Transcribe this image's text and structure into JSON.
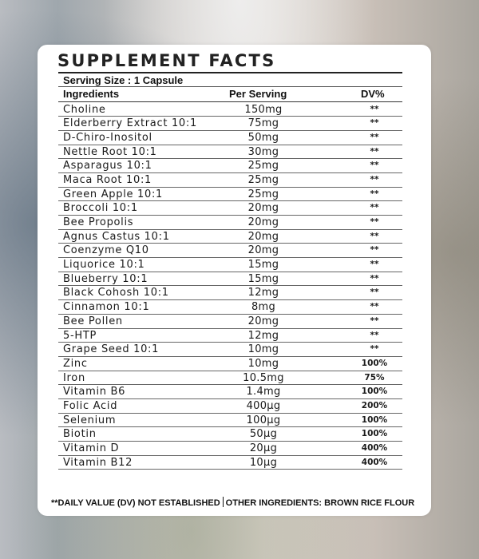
{
  "label": {
    "title": "SUPPLEMENT FACTS",
    "serving_size": "Serving Size : 1 Capsule",
    "headers": {
      "ingredients": "Ingredients",
      "per_serving": "Per Serving",
      "dv": "DV%"
    },
    "rows": [
      {
        "name": "Choline",
        "amount": "150mg",
        "dv": "**"
      },
      {
        "name": "Elderberry Extract 10:1",
        "amount": "75mg",
        "dv": "**"
      },
      {
        "name": "D-Chiro-Inositol",
        "amount": "50mg",
        "dv": "**"
      },
      {
        "name": "Nettle Root 10:1",
        "amount": "30mg",
        "dv": "**"
      },
      {
        "name": "Asparagus 10:1",
        "amount": "25mg",
        "dv": "**"
      },
      {
        "name": "Maca Root 10:1",
        "amount": "25mg",
        "dv": "**"
      },
      {
        "name": "Green Apple 10:1",
        "amount": "25mg",
        "dv": "**"
      },
      {
        "name": "Broccoli 10:1",
        "amount": "20mg",
        "dv": "**"
      },
      {
        "name": "Bee Propolis",
        "amount": "20mg",
        "dv": "**"
      },
      {
        "name": "Agnus Castus 10:1",
        "amount": "20mg",
        "dv": "**"
      },
      {
        "name": "Coenzyme Q10",
        "amount": "20mg",
        "dv": "**"
      },
      {
        "name": "Liquorice 10:1",
        "amount": "15mg",
        "dv": "**"
      },
      {
        "name": "Blueberry 10:1",
        "amount": "15mg",
        "dv": "**"
      },
      {
        "name": "Black Cohosh 10:1",
        "amount": "12mg",
        "dv": "**"
      },
      {
        "name": "Cinnamon 10:1",
        "amount": "8mg",
        "dv": "**"
      },
      {
        "name": "Bee Pollen",
        "amount": "20mg",
        "dv": "**"
      },
      {
        "name": "5-HTP",
        "amount": "12mg",
        "dv": "**"
      },
      {
        "name": "Grape Seed 10:1",
        "amount": "10mg",
        "dv": "**"
      },
      {
        "name": "Zinc",
        "amount": "10mg",
        "dv": "100%"
      },
      {
        "name": "Iron",
        "amount": "10.5mg",
        "dv": "75%"
      },
      {
        "name": "Vitamin B6",
        "amount": "1.4mg",
        "dv": "100%"
      },
      {
        "name": "Folic Acid",
        "amount": "400µg",
        "dv": "200%"
      },
      {
        "name": "Selenium",
        "amount": "100µg",
        "dv": "100%"
      },
      {
        "name": "Biotin",
        "amount": "50µg",
        "dv": "100%"
      },
      {
        "name": "Vitamin D",
        "amount": "20µg",
        "dv": "400%"
      },
      {
        "name": "Vitamin B12",
        "amount": "10µg",
        "dv": "400%"
      }
    ],
    "footnote_left": "**DAILY VALUE (DV) NOT ESTABLISHED",
    "footnote_right": "OTHER INGREDIENTS: BROWN RICE FLOUR"
  }
}
